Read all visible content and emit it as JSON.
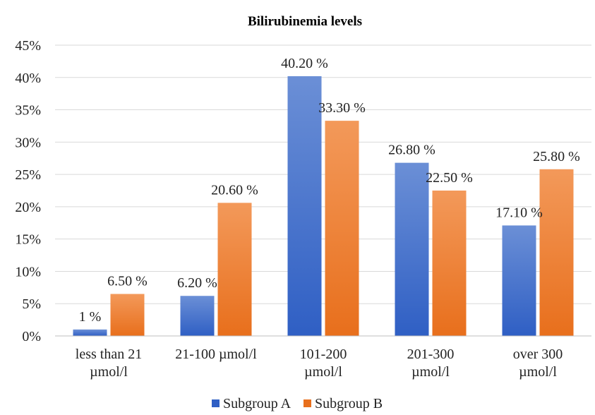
{
  "chart_data": {
    "type": "bar",
    "title": "Bilirubinemia levels",
    "categories": [
      [
        "less than 21",
        "µmol/l"
      ],
      [
        "21-100  µmol/l"
      ],
      [
        "101-200",
        "µmol/l"
      ],
      [
        "201-300",
        "µmol/l"
      ],
      [
        "over 300",
        "µmol/l"
      ]
    ],
    "series": [
      {
        "name": "Subgroup A",
        "values": [
          1,
          6.2,
          40.2,
          26.8,
          17.1
        ],
        "labels": [
          "1 %",
          "6.20 %",
          "40.20 %",
          "26.80 %",
          "17.10 %"
        ],
        "color_top": "#6b8fd6",
        "color_bottom": "#2f5fc4"
      },
      {
        "name": "Subgroup B",
        "values": [
          6.5,
          20.6,
          33.3,
          22.5,
          25.8
        ],
        "labels": [
          "6.50 %",
          "20.60 %",
          "33.30 %",
          "22.50 %",
          "25.80 %"
        ],
        "color_top": "#f3995a",
        "color_bottom": "#e86f1c"
      }
    ],
    "ylim": [
      0,
      45
    ],
    "yticks": [
      "0%",
      "5%",
      "10%",
      "15%",
      "20%",
      "25%",
      "30%",
      "35%",
      "40%",
      "45%"
    ],
    "grid": true,
    "legend": "bottom"
  }
}
